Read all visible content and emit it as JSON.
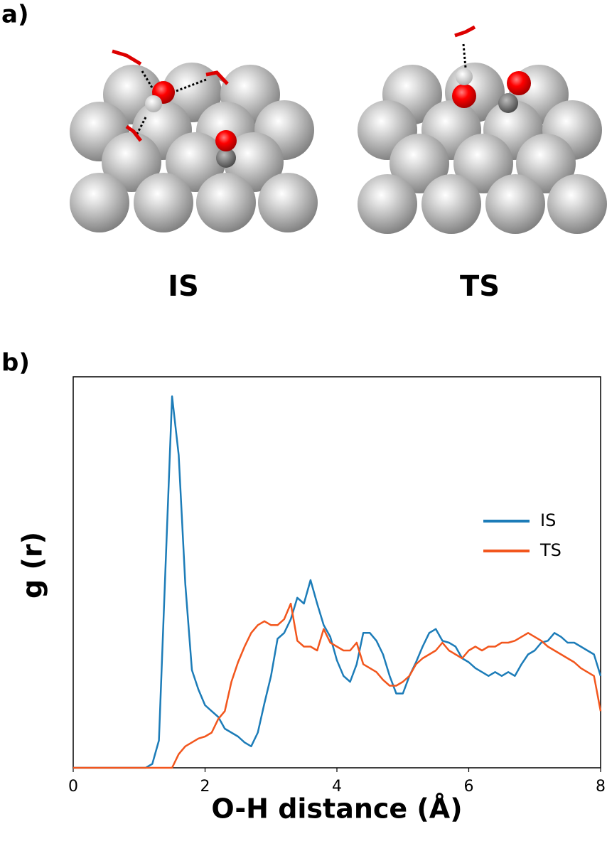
{
  "panel_a": {
    "label": "a)",
    "structures": [
      "IS",
      "TS"
    ]
  },
  "panel_b": {
    "label": "b)"
  },
  "chart_data": {
    "type": "line",
    "xlabel": "O-H distance (Å)",
    "ylabel": "g (r)",
    "xlim": [
      0,
      8
    ],
    "xticks": [
      0,
      2,
      4,
      6,
      8
    ],
    "ylim": [
      0,
      10
    ],
    "legend": "right",
    "x": [
      0,
      0.1,
      0.2,
      0.3,
      0.4,
      0.5,
      0.6,
      0.7,
      0.8,
      0.9,
      1,
      1.1,
      1.2,
      1.3,
      1.4,
      1.5,
      1.6,
      1.7,
      1.8,
      1.9,
      2,
      2.1,
      2.2,
      2.3,
      2.4,
      2.5,
      2.6,
      2.7,
      2.8,
      2.9,
      3,
      3.1,
      3.2,
      3.3,
      3.4,
      3.5,
      3.6,
      3.7,
      3.8,
      3.9,
      4,
      4.1,
      4.2,
      4.3,
      4.4,
      4.5,
      4.6,
      4.7,
      4.8,
      4.9,
      5,
      5.1,
      5.2,
      5.3,
      5.4,
      5.5,
      5.6,
      5.7,
      5.8,
      5.9,
      6,
      6.1,
      6.2,
      6.3,
      6.4,
      6.5,
      6.6,
      6.7,
      6.8,
      6.9,
      7,
      7.1,
      7.2,
      7.3,
      7.4,
      7.5,
      7.6,
      7.7,
      7.8,
      7.9,
      8
    ],
    "series": [
      {
        "name": "IS",
        "color": "#1c7cb8",
        "values": [
          0,
          0,
          0,
          0,
          0,
          0,
          0,
          0,
          0,
          0,
          0,
          0,
          0.1,
          0.7,
          5.1,
          9.5,
          8.0,
          4.7,
          2.5,
          2.0,
          1.6,
          1.45,
          1.3,
          1.0,
          0.9,
          0.8,
          0.65,
          0.55,
          0.9,
          1.65,
          2.35,
          3.3,
          3.45,
          3.8,
          4.35,
          4.2,
          4.8,
          4.2,
          3.65,
          3.35,
          2.75,
          2.35,
          2.2,
          2.65,
          3.45,
          3.45,
          3.25,
          2.9,
          2.35,
          1.9,
          1.9,
          2.35,
          2.7,
          3.1,
          3.45,
          3.55,
          3.25,
          3.2,
          3.1,
          2.8,
          2.7,
          2.55,
          2.45,
          2.35,
          2.45,
          2.35,
          2.45,
          2.35,
          2.65,
          2.9,
          3.0,
          3.2,
          3.25,
          3.45,
          3.35,
          3.2,
          3.2,
          3.1,
          3.0,
          2.9,
          2.35
        ]
      },
      {
        "name": "TS",
        "color": "#f2561d",
        "values": [
          0,
          0,
          0,
          0,
          0,
          0,
          0,
          0,
          0,
          0,
          0,
          0,
          0,
          0,
          0,
          0,
          0.35,
          0.55,
          0.65,
          0.75,
          0.8,
          0.9,
          1.25,
          1.45,
          2.2,
          2.7,
          3.1,
          3.45,
          3.65,
          3.75,
          3.65,
          3.65,
          3.8,
          4.2,
          3.25,
          3.1,
          3.1,
          3.0,
          3.55,
          3.2,
          3.1,
          3.0,
          3.0,
          3.2,
          2.65,
          2.55,
          2.45,
          2.25,
          2.1,
          2.1,
          2.2,
          2.35,
          2.65,
          2.8,
          2.9,
          3.0,
          3.2,
          3.0,
          2.9,
          2.8,
          3.0,
          3.1,
          3.0,
          3.1,
          3.1,
          3.2,
          3.2,
          3.25,
          3.35,
          3.45,
          3.35,
          3.25,
          3.1,
          3.0,
          2.9,
          2.8,
          2.7,
          2.55,
          2.45,
          2.35,
          1.45
        ]
      }
    ]
  }
}
